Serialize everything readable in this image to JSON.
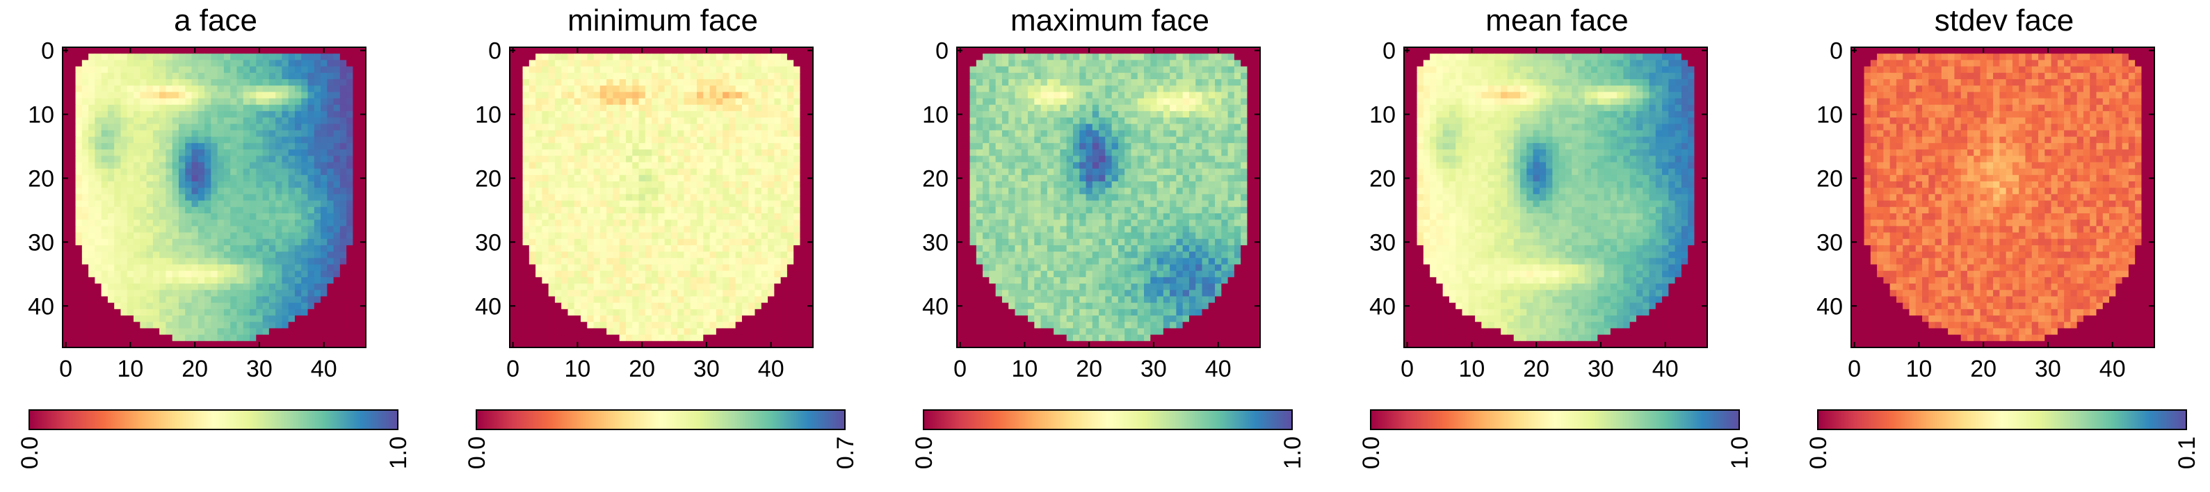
{
  "chart_data": [
    {
      "type": "heatmap",
      "title": "a face",
      "xticks": [
        "0",
        "10",
        "20",
        "30",
        "40"
      ],
      "yticks": [
        "0",
        "10",
        "20",
        "30",
        "40"
      ],
      "xlim": [
        0,
        47
      ],
      "ylim": [
        0,
        47
      ],
      "colorbar": {
        "min_label": "0.0",
        "max_label": "1.0",
        "vmin": 0.0,
        "vmax": 1.0
      },
      "variant": "face"
    },
    {
      "type": "heatmap",
      "title": "minimum face",
      "xticks": [
        "0",
        "10",
        "20",
        "30",
        "40"
      ],
      "yticks": [
        "0",
        "10",
        "20",
        "30",
        "40"
      ],
      "xlim": [
        0,
        47
      ],
      "ylim": [
        0,
        47
      ],
      "colorbar": {
        "min_label": "0.0",
        "max_label": "0.7",
        "vmin": 0.0,
        "vmax": 0.7
      },
      "variant": "min"
    },
    {
      "type": "heatmap",
      "title": "maximum face",
      "xticks": [
        "0",
        "10",
        "20",
        "30",
        "40"
      ],
      "yticks": [
        "0",
        "10",
        "20",
        "30",
        "40"
      ],
      "xlim": [
        0,
        47
      ],
      "ylim": [
        0,
        47
      ],
      "colorbar": {
        "min_label": "0.0",
        "max_label": "1.0",
        "vmin": 0.0,
        "vmax": 1.0
      },
      "variant": "max"
    },
    {
      "type": "heatmap",
      "title": "mean face",
      "xticks": [
        "0",
        "10",
        "20",
        "30",
        "40"
      ],
      "yticks": [
        "0",
        "10",
        "20",
        "30",
        "40"
      ],
      "xlim": [
        0,
        47
      ],
      "ylim": [
        0,
        47
      ],
      "colorbar": {
        "min_label": "0.0",
        "max_label": "1.0",
        "vmin": 0.0,
        "vmax": 1.0
      },
      "variant": "mean"
    },
    {
      "type": "heatmap",
      "title": "stdev face",
      "xticks": [
        "0",
        "10",
        "20",
        "30",
        "40"
      ],
      "yticks": [
        "0",
        "10",
        "20",
        "30",
        "40"
      ],
      "xlim": [
        0,
        47
      ],
      "ylim": [
        0,
        47
      ],
      "colorbar": {
        "min_label": "0.0",
        "max_label": "0.1",
        "vmin": 0.0,
        "vmax": 0.1
      },
      "variant": "std"
    }
  ],
  "colormap": {
    "name": "Spectral",
    "stops": [
      "#9e0142",
      "#d53e4f",
      "#f46d43",
      "#fdae61",
      "#fee08b",
      "#ffffbf",
      "#e6f598",
      "#abdda4",
      "#66c2a5",
      "#3288bd",
      "#5e4fa2"
    ]
  }
}
